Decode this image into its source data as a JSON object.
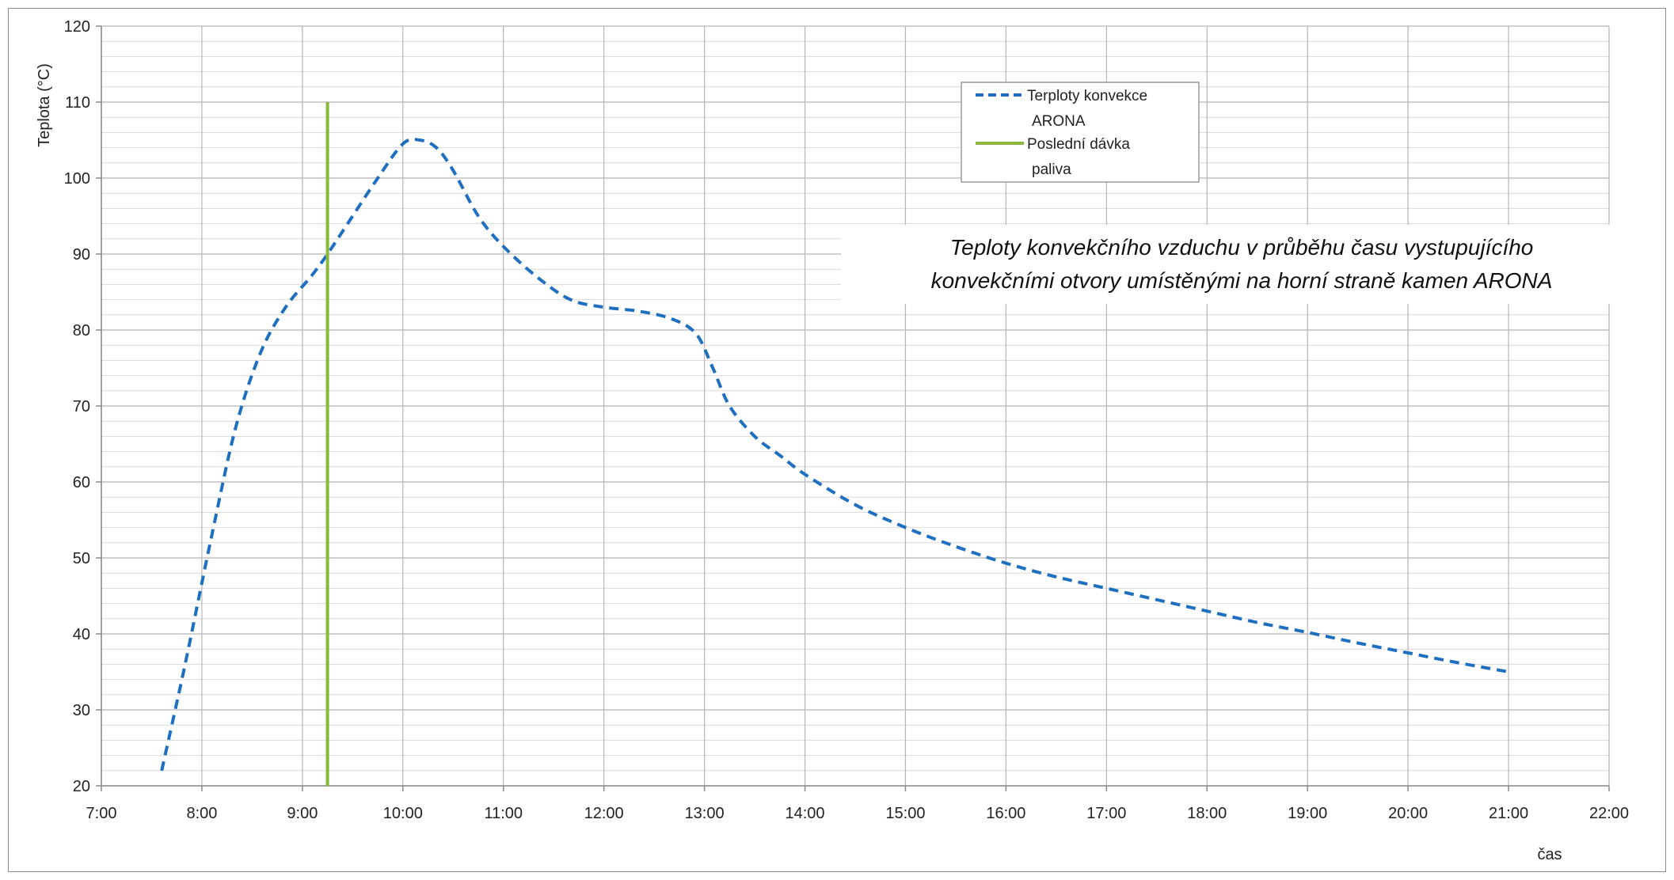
{
  "chart_data": {
    "type": "line",
    "title": "Teploty konvekčního vzduchu v průběhu času vystupujícího konvekčními otvory umístěnými na horní straně kamen ARONA",
    "title_lines": [
      "Teploty konvekčního vzduchu v průběhu času vystupujícího",
      "konvekčními otvory umístěnými na horní straně kamen ARONA"
    ],
    "xlabel": "čas",
    "ylabel": "Teplota  (°C)",
    "xlim": [
      "7:00",
      "22:00"
    ],
    "ylim": [
      20,
      120
    ],
    "x_ticks": [
      "7:00",
      "8:00",
      "9:00",
      "10:00",
      "11:00",
      "12:00",
      "13:00",
      "14:00",
      "15:00",
      "16:00",
      "17:00",
      "18:00",
      "19:00",
      "20:00",
      "21:00",
      "22:00"
    ],
    "y_ticks": [
      20,
      30,
      40,
      50,
      60,
      70,
      80,
      90,
      100,
      110,
      120
    ],
    "grid": true,
    "minor_grid": true,
    "legend_position": "top-center",
    "series": [
      {
        "name": "Terploty konvekce ARONA",
        "color": "#1f6fc1",
        "style": "dashed",
        "x": [
          "7:36",
          "7:50",
          "8:05",
          "8:20",
          "8:35",
          "8:50",
          "9:05",
          "9:15",
          "9:30",
          "9:45",
          "10:00",
          "10:10",
          "10:20",
          "10:30",
          "10:45",
          "11:00",
          "11:20",
          "11:40",
          "12:00",
          "12:20",
          "12:40",
          "12:55",
          "13:05",
          "13:15",
          "13:30",
          "13:45",
          "14:00",
          "14:30",
          "15:00",
          "15:30",
          "16:00",
          "16:30",
          "17:00",
          "17:30",
          "18:00",
          "18:30",
          "19:00",
          "19:30",
          "20:00",
          "20:30",
          "21:00"
        ],
        "y": [
          22,
          36,
          52,
          67,
          77,
          83,
          87,
          90,
          95,
          100,
          104.5,
          105,
          104,
          101,
          95,
          91,
          87,
          84,
          83,
          82.5,
          81.5,
          79.5,
          75,
          70,
          66,
          63.5,
          61,
          57,
          54,
          51.5,
          49.3,
          47.5,
          46,
          44.5,
          43,
          41.5,
          40.2,
          38.8,
          37.5,
          36.2,
          35
        ]
      },
      {
        "name": "Poslední dávka paliva",
        "color": "#8ab83a",
        "style": "solid",
        "x": [
          "9:15",
          "9:15"
        ],
        "y": [
          20,
          110
        ]
      }
    ],
    "legend_lines": [
      [
        "Terploty konvekce",
        "ARONA"
      ],
      [
        "Poslední dávka",
        "paliva"
      ]
    ]
  }
}
